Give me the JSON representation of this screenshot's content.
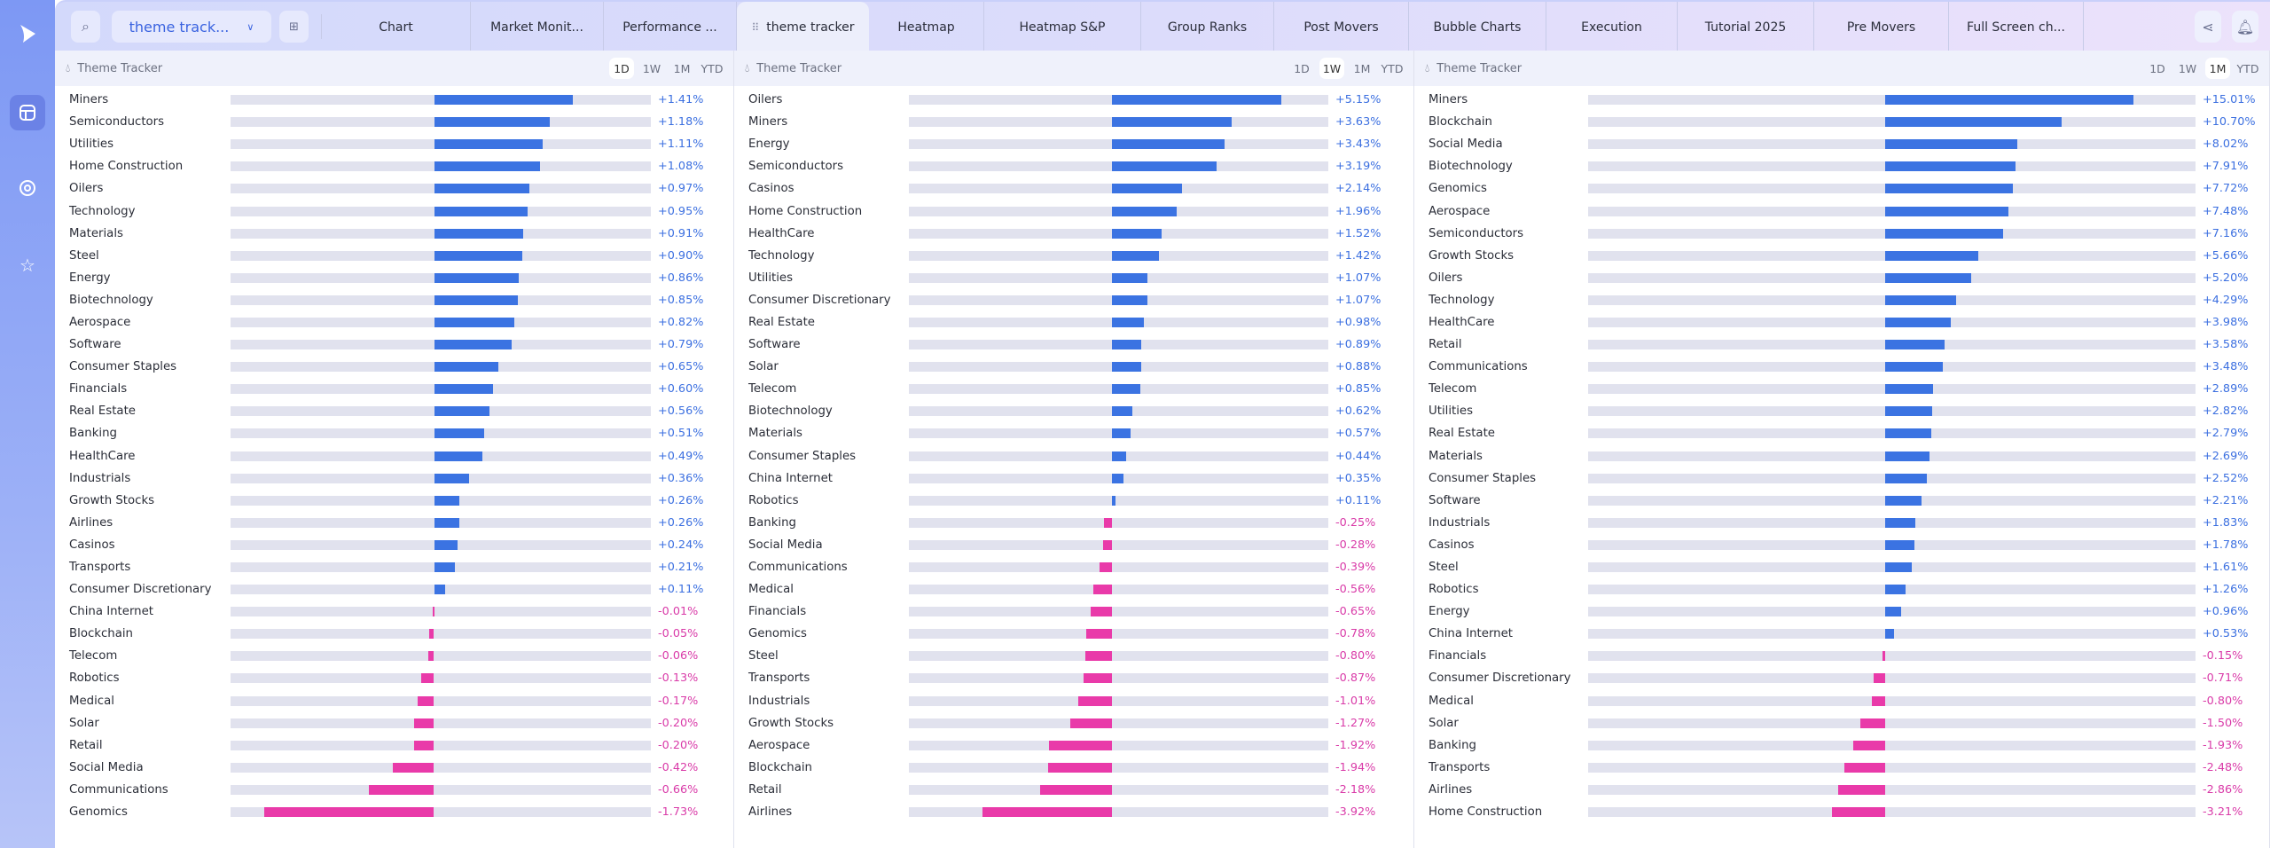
{
  "app": {
    "logo": "play-logo-icon",
    "sidebar_icons": [
      "layout-icon",
      "radar-icon",
      "star-icon"
    ]
  },
  "topbar": {
    "search_icon": "search-icon",
    "layout_dropdown": "theme track...",
    "add_widget_icon": "add-widget-icon",
    "tabs": [
      {
        "label": "Chart"
      },
      {
        "label": "Market Monit..."
      },
      {
        "label": "Performance ..."
      },
      {
        "label": "theme tracker",
        "active": true
      },
      {
        "label": "Heatmap"
      },
      {
        "label": "Heatmap S&P"
      },
      {
        "label": "Group Ranks"
      },
      {
        "label": "Post Movers"
      },
      {
        "label": "Bubble Charts"
      },
      {
        "label": "Execution"
      },
      {
        "label": "Tutorial 2025"
      },
      {
        "label": "Pre Movers"
      },
      {
        "label": "Full Screen ch..."
      }
    ],
    "share_icon": "share-icon",
    "bell_icon": "bell-icon"
  },
  "colors": {
    "positive_bar": "#3b73e2",
    "negative_bar": "#e93aa9",
    "positive_text": "#3b6fe0",
    "negative_text": "#d93aa8",
    "track": "#e1e2ee"
  },
  "panels": [
    {
      "title": "Theme Tracker",
      "ranges": [
        "1D",
        "1W",
        "1M",
        "YTD"
      ],
      "selected": "1D",
      "rows": [
        [
          "Miners",
          1.41
        ],
        [
          "Semiconductors",
          1.18
        ],
        [
          "Utilities",
          1.11
        ],
        [
          "Home Construction",
          1.08
        ],
        [
          "Oilers",
          0.97
        ],
        [
          "Technology",
          0.95
        ],
        [
          "Materials",
          0.91
        ],
        [
          "Steel",
          0.9
        ],
        [
          "Energy",
          0.86
        ],
        [
          "Biotechnology",
          0.85
        ],
        [
          "Aerospace",
          0.82
        ],
        [
          "Software",
          0.79
        ],
        [
          "Consumer Staples",
          0.65
        ],
        [
          "Financials",
          0.6
        ],
        [
          "Real Estate",
          0.56
        ],
        [
          "Banking",
          0.51
        ],
        [
          "HealthCare",
          0.49
        ],
        [
          "Industrials",
          0.36
        ],
        [
          "Growth Stocks",
          0.26
        ],
        [
          "Airlines",
          0.26
        ],
        [
          "Casinos",
          0.24
        ],
        [
          "Transports",
          0.21
        ],
        [
          "Consumer Discretionary",
          0.11
        ],
        [
          "China Internet",
          -0.01
        ],
        [
          "Blockchain",
          -0.05
        ],
        [
          "Telecom",
          -0.06
        ],
        [
          "Robotics",
          -0.13
        ],
        [
          "Medical",
          -0.17
        ],
        [
          "Solar",
          -0.2
        ],
        [
          "Retail",
          -0.2
        ],
        [
          "Social Media",
          -0.42
        ],
        [
          "Communications",
          -0.66
        ],
        [
          "Genomics",
          -1.73
        ]
      ]
    },
    {
      "title": "Theme Tracker",
      "ranges": [
        "1D",
        "1W",
        "1M",
        "YTD"
      ],
      "selected": "1W",
      "rows": [
        [
          "Oilers",
          5.15
        ],
        [
          "Miners",
          3.63
        ],
        [
          "Energy",
          3.43
        ],
        [
          "Semiconductors",
          3.19
        ],
        [
          "Casinos",
          2.14
        ],
        [
          "Home Construction",
          1.96
        ],
        [
          "HealthCare",
          1.52
        ],
        [
          "Technology",
          1.42
        ],
        [
          "Utilities",
          1.07
        ],
        [
          "Consumer Discretionary",
          1.07
        ],
        [
          "Real Estate",
          0.98
        ],
        [
          "Software",
          0.89
        ],
        [
          "Solar",
          0.88
        ],
        [
          "Telecom",
          0.85
        ],
        [
          "Biotechnology",
          0.62
        ],
        [
          "Materials",
          0.57
        ],
        [
          "Consumer Staples",
          0.44
        ],
        [
          "China Internet",
          0.35
        ],
        [
          "Robotics",
          0.11
        ],
        [
          "Banking",
          -0.25
        ],
        [
          "Social Media",
          -0.28
        ],
        [
          "Communications",
          -0.39
        ],
        [
          "Medical",
          -0.56
        ],
        [
          "Financials",
          -0.65
        ],
        [
          "Genomics",
          -0.78
        ],
        [
          "Steel",
          -0.8
        ],
        [
          "Transports",
          -0.87
        ],
        [
          "Industrials",
          -1.01
        ],
        [
          "Growth Stocks",
          -1.27
        ],
        [
          "Aerospace",
          -1.92
        ],
        [
          "Blockchain",
          -1.94
        ],
        [
          "Retail",
          -2.18
        ],
        [
          "Airlines",
          -3.92
        ]
      ]
    },
    {
      "title": "Theme Tracker",
      "ranges": [
        "1D",
        "1W",
        "1M",
        "YTD"
      ],
      "selected": "1M",
      "rows": [
        [
          "Miners",
          15.01
        ],
        [
          "Blockchain",
          10.7
        ],
        [
          "Social Media",
          8.02
        ],
        [
          "Biotechnology",
          7.91
        ],
        [
          "Genomics",
          7.72
        ],
        [
          "Aerospace",
          7.48
        ],
        [
          "Semiconductors",
          7.16
        ],
        [
          "Growth Stocks",
          5.66
        ],
        [
          "Oilers",
          5.2
        ],
        [
          "Technology",
          4.29
        ],
        [
          "HealthCare",
          3.98
        ],
        [
          "Retail",
          3.58
        ],
        [
          "Communications",
          3.48
        ],
        [
          "Telecom",
          2.89
        ],
        [
          "Utilities",
          2.82
        ],
        [
          "Real Estate",
          2.79
        ],
        [
          "Materials",
          2.69
        ],
        [
          "Consumer Staples",
          2.52
        ],
        [
          "Software",
          2.21
        ],
        [
          "Industrials",
          1.83
        ],
        [
          "Casinos",
          1.78
        ],
        [
          "Steel",
          1.61
        ],
        [
          "Robotics",
          1.26
        ],
        [
          "Energy",
          0.96
        ],
        [
          "China Internet",
          0.53
        ],
        [
          "Financials",
          -0.15
        ],
        [
          "Consumer Discretionary",
          -0.71
        ],
        [
          "Medical",
          -0.8
        ],
        [
          "Solar",
          -1.5
        ],
        [
          "Banking",
          -1.93
        ],
        [
          "Transports",
          -2.48
        ],
        [
          "Airlines",
          -2.86
        ],
        [
          "Home Construction",
          -3.21
        ]
      ]
    }
  ]
}
